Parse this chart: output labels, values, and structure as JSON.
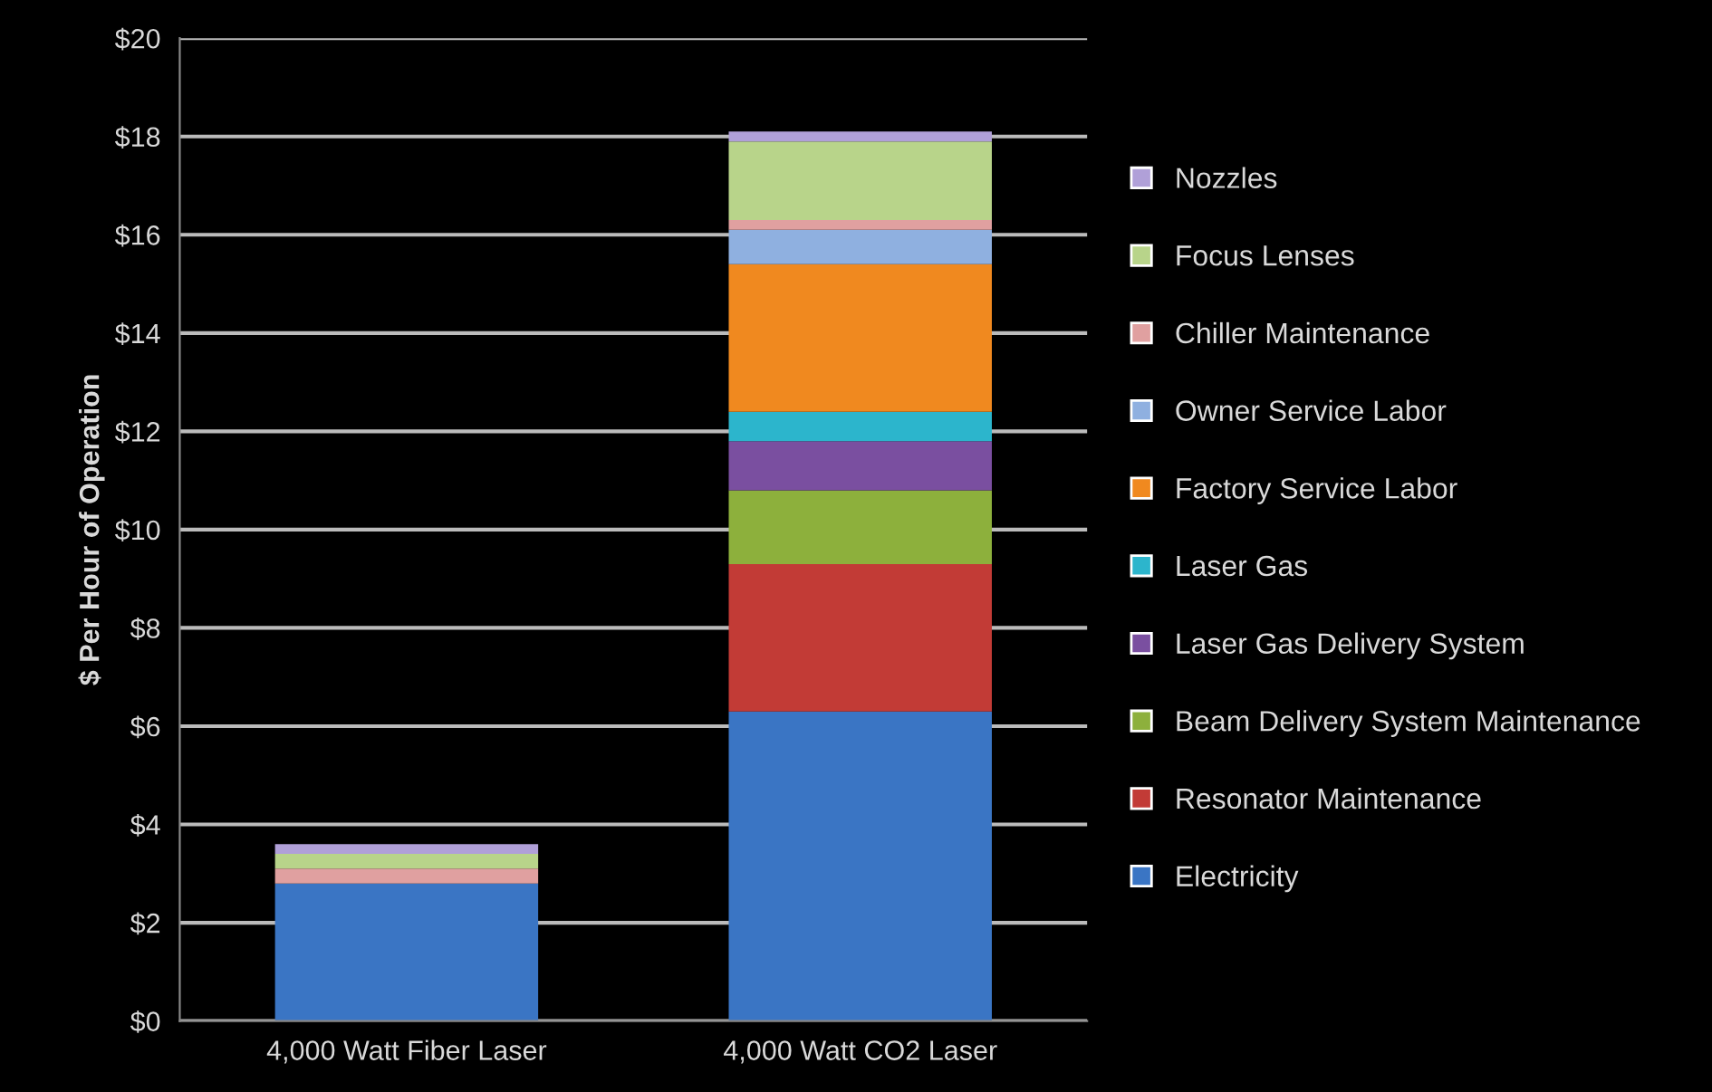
{
  "chart_data": {
    "type": "bar",
    "stacked": true,
    "ylabel": "$ Per Hour of Operation",
    "categories": [
      "4,000 Watt Fiber Laser",
      "4,000 Watt CO2 Laser"
    ],
    "series": [
      {
        "name": "Electricity",
        "color": "#3a75c4",
        "values": [
          2.8,
          6.3
        ]
      },
      {
        "name": "Resonator Maintenance",
        "color": "#c23b36",
        "values": [
          0,
          3.0
        ]
      },
      {
        "name": "Beam Delivery System Maintenance",
        "color": "#8db03c",
        "values": [
          0,
          1.5
        ]
      },
      {
        "name": "Laser Gas Delivery System",
        "color": "#7a4fa0",
        "values": [
          0,
          1.0
        ]
      },
      {
        "name": "Laser Gas",
        "color": "#2cb5cc",
        "values": [
          0,
          0.6
        ]
      },
      {
        "name": "Factory Service Labor",
        "color": "#f0891f",
        "values": [
          0,
          3.0
        ]
      },
      {
        "name": "Owner Service Labor",
        "color": "#8fb0e0",
        "values": [
          0,
          0.7
        ]
      },
      {
        "name": "Chiller Maintenance",
        "color": "#e0a0a0",
        "values": [
          0.3,
          0.2
        ]
      },
      {
        "name": "Focus Lenses",
        "color": "#b8d48a",
        "values": [
          0.3,
          1.6
        ]
      },
      {
        "name": "Nozzles",
        "color": "#b0a0d8",
        "values": [
          0.2,
          0.2
        ]
      }
    ],
    "ylim": [
      0,
      20
    ],
    "yticks": [
      {
        "value": 0,
        "label": "$0"
      },
      {
        "value": 2,
        "label": "$2"
      },
      {
        "value": 4,
        "label": "$4"
      },
      {
        "value": 6,
        "label": "$6"
      },
      {
        "value": 8,
        "label": "$8"
      },
      {
        "value": 10,
        "label": "$10"
      },
      {
        "value": 12,
        "label": "$12"
      },
      {
        "value": 14,
        "label": "$14"
      },
      {
        "value": 16,
        "label": "$16"
      },
      {
        "value": 18,
        "label": "$18"
      },
      {
        "value": 20,
        "label": "$20"
      }
    ],
    "grid": "y",
    "legend": "right"
  }
}
